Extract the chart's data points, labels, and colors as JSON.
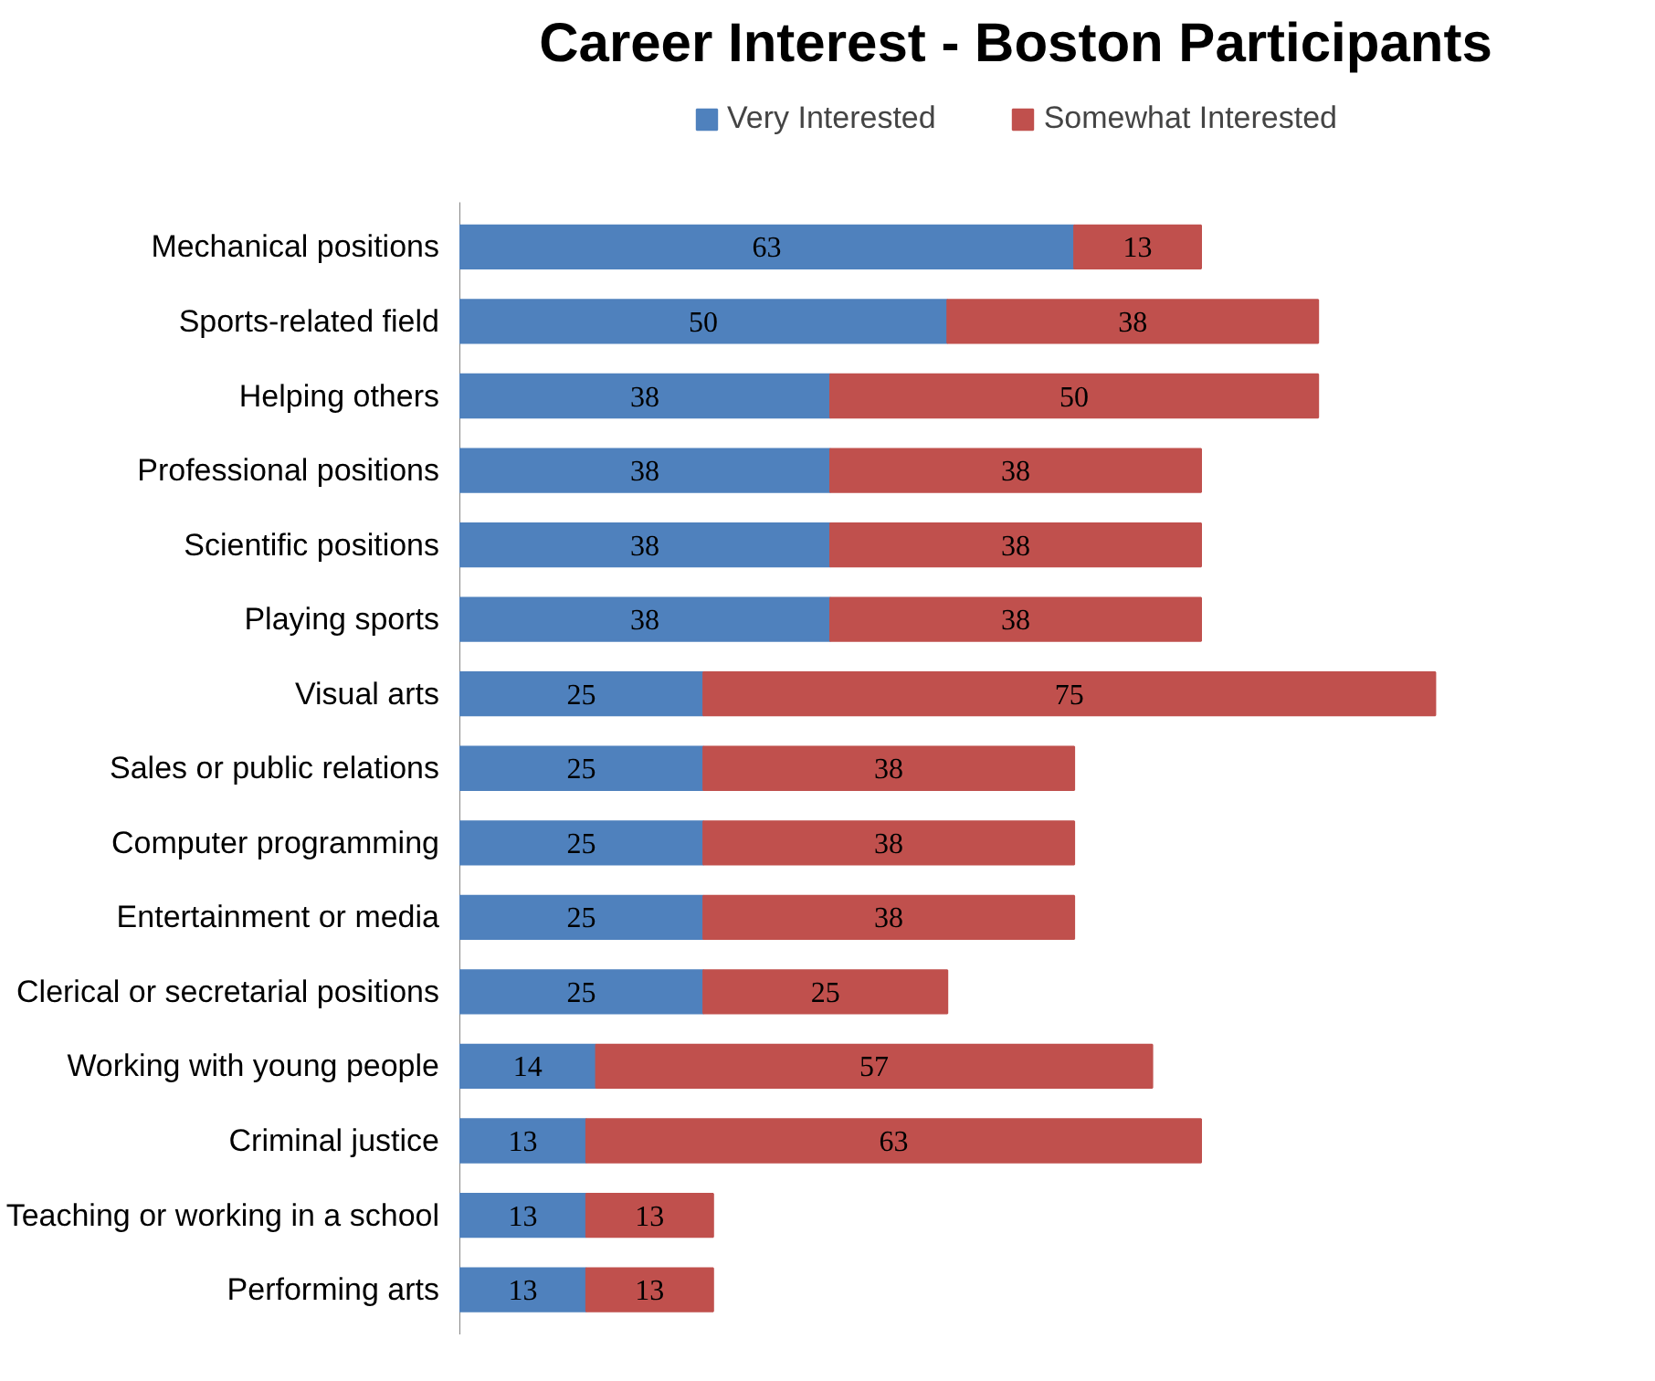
{
  "chart_data": {
    "type": "bar",
    "title": "Career Interest - Boston Participants",
    "orientation": "horizontal",
    "stacked": true,
    "data_labels": true,
    "grid": false,
    "legend": "top",
    "tick_labels": "y",
    "categories": [
      "Mechanical positions",
      "Sports-related field",
      "Helping others",
      "Professional positions",
      "Scientific positions",
      "Playing sports",
      "Visual arts",
      "Sales or public relations",
      "Computer programming",
      "Entertainment or media",
      "Clerical or secretarial positions",
      "Working with young people",
      "Criminal justice",
      "Teaching or working in a school",
      "Performing arts"
    ],
    "series": [
      {
        "name": "Very Interested",
        "color": "#4f81bd",
        "values": [
          63,
          50,
          38,
          38,
          38,
          38,
          25,
          25,
          25,
          25,
          25,
          14,
          13,
          13,
          13
        ]
      },
      {
        "name": "Somewhat Interested",
        "color": "#c0504d",
        "values": [
          13,
          38,
          50,
          38,
          38,
          38,
          75,
          38,
          38,
          38,
          25,
          57,
          63,
          13,
          13
        ]
      }
    ]
  }
}
